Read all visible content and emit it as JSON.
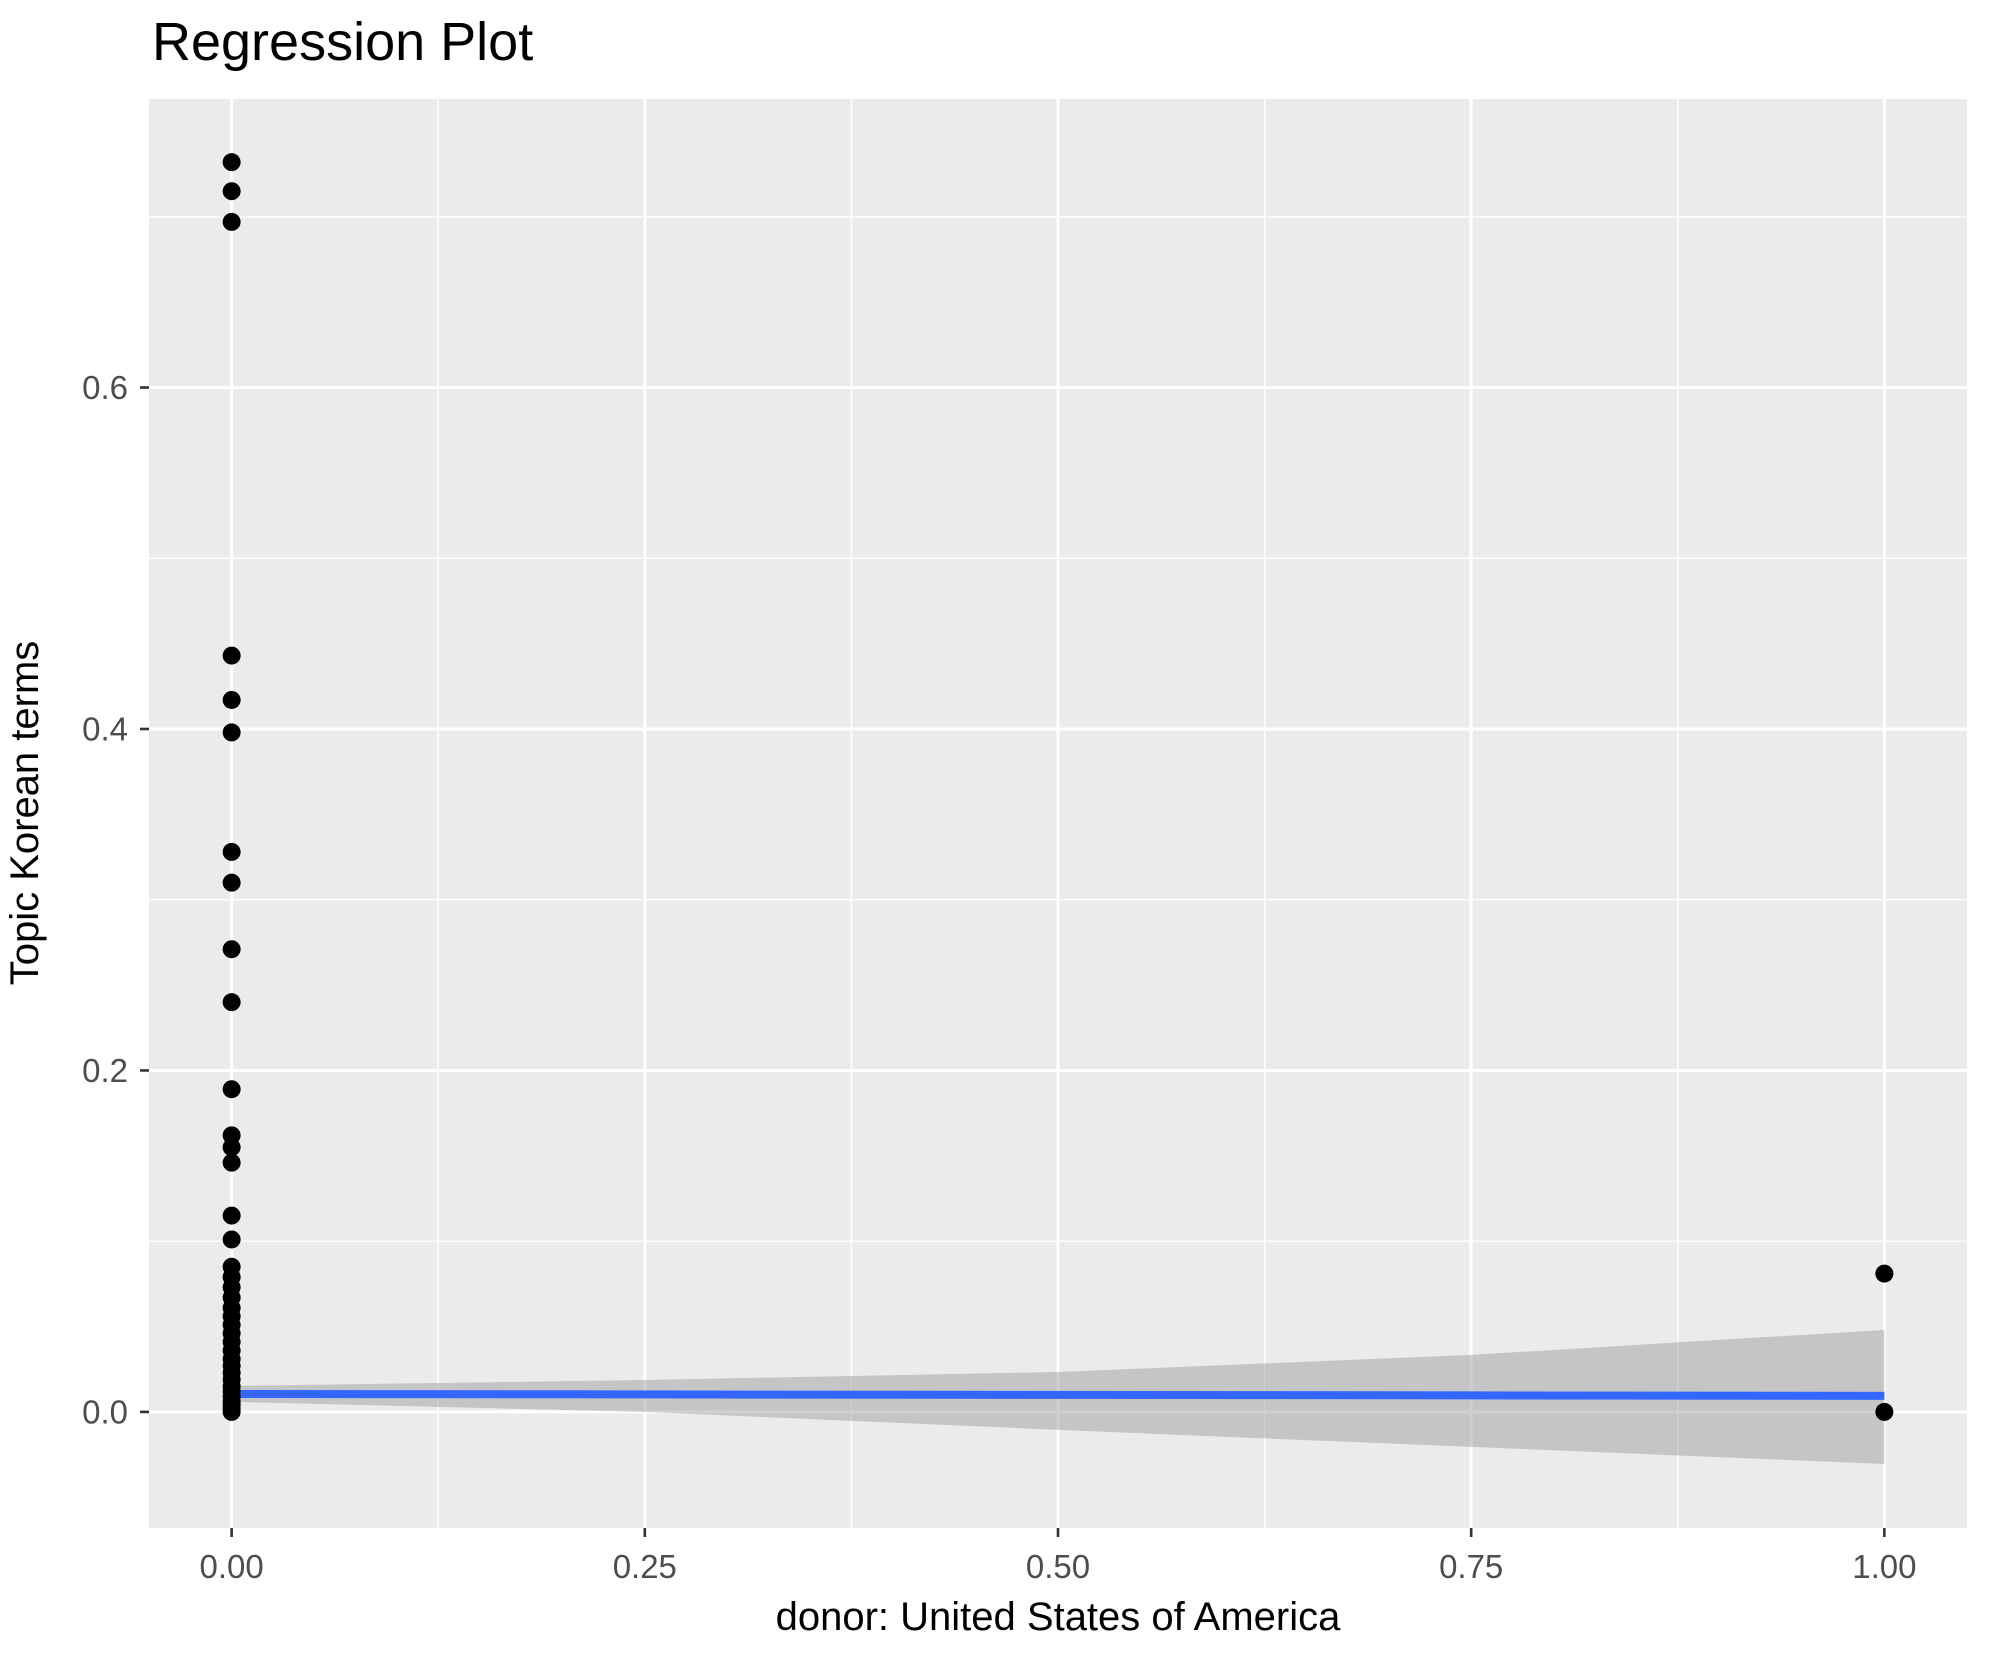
{
  "colors": {
    "figure_background": "#FFFFFF",
    "panel_background": "#EBEBEB",
    "gridline": "#FFFFFF",
    "point": "#000000",
    "regression_line": "#3366FF",
    "confidence_band": "rgba(150,150,150,0.45)",
    "tick_mark": "#333333",
    "tick_label": "#4D4D4D",
    "title_text": "#000000"
  },
  "chart_data": {
    "type": "scatter",
    "title": "Regression Plot",
    "xlabel": "donor: United States of America",
    "ylabel": "Topic Korean terms",
    "xlim": [
      -0.05,
      1.05
    ],
    "ylim": [
      -0.068,
      0.769
    ],
    "x_ticks": [
      0.0,
      0.25,
      0.5,
      0.75,
      1.0
    ],
    "x_tick_labels": [
      "0.00",
      "0.25",
      "0.50",
      "0.75",
      "1.00"
    ],
    "x_minor_ticks": [
      0.125,
      0.375,
      0.625,
      0.875
    ],
    "y_ticks": [
      0.0,
      0.2,
      0.4,
      0.6
    ],
    "y_tick_labels": [
      "0.0",
      "0.2",
      "0.4",
      "0.6"
    ],
    "y_minor_ticks": [
      0.1,
      0.3,
      0.5,
      0.7
    ],
    "grid": true,
    "legend": "none",
    "points": [
      {
        "x": 0,
        "y": 0.732
      },
      {
        "x": 0,
        "y": 0.715
      },
      {
        "x": 0,
        "y": 0.697
      },
      {
        "x": 0,
        "y": 0.443
      },
      {
        "x": 0,
        "y": 0.417
      },
      {
        "x": 0,
        "y": 0.398
      },
      {
        "x": 0,
        "y": 0.328
      },
      {
        "x": 0,
        "y": 0.31
      },
      {
        "x": 0,
        "y": 0.271
      },
      {
        "x": 0,
        "y": 0.24
      },
      {
        "x": 0,
        "y": 0.189
      },
      {
        "x": 0,
        "y": 0.162
      },
      {
        "x": 0,
        "y": 0.155
      },
      {
        "x": 0,
        "y": 0.146
      },
      {
        "x": 0,
        "y": 0.115
      },
      {
        "x": 0,
        "y": 0.101
      },
      {
        "x": 0,
        "y": 0.085
      },
      {
        "x": 0,
        "y": 0.079
      },
      {
        "x": 0,
        "y": 0.073
      },
      {
        "x": 0,
        "y": 0.067
      },
      {
        "x": 0,
        "y": 0.061
      },
      {
        "x": 0,
        "y": 0.056
      },
      {
        "x": 0,
        "y": 0.051
      },
      {
        "x": 0,
        "y": 0.046
      },
      {
        "x": 0,
        "y": 0.041
      },
      {
        "x": 0,
        "y": 0.036
      },
      {
        "x": 0,
        "y": 0.031
      },
      {
        "x": 0,
        "y": 0.027
      },
      {
        "x": 0,
        "y": 0.023
      },
      {
        "x": 0,
        "y": 0.019
      },
      {
        "x": 0,
        "y": 0.015
      },
      {
        "x": 0,
        "y": 0.012
      },
      {
        "x": 0,
        "y": 0.009
      },
      {
        "x": 0,
        "y": 0.006
      },
      {
        "x": 0,
        "y": 0.004
      },
      {
        "x": 0,
        "y": 0.002
      },
      {
        "x": 0,
        "y": 0.0
      },
      {
        "x": 1,
        "y": 0.081
      },
      {
        "x": 1,
        "y": 0.0
      }
    ],
    "regression_line": {
      "x": [
        0,
        1
      ],
      "y": [
        0.0105,
        0.0094
      ]
    },
    "confidence_band": {
      "x": [
        0,
        0.25,
        0.5,
        0.75,
        1.0
      ],
      "upper": [
        0.0152,
        0.0187,
        0.0234,
        0.0334,
        0.048
      ],
      "lower": [
        0.0059,
        0.0,
        -0.0105,
        -0.0205,
        -0.0305
      ]
    }
  }
}
